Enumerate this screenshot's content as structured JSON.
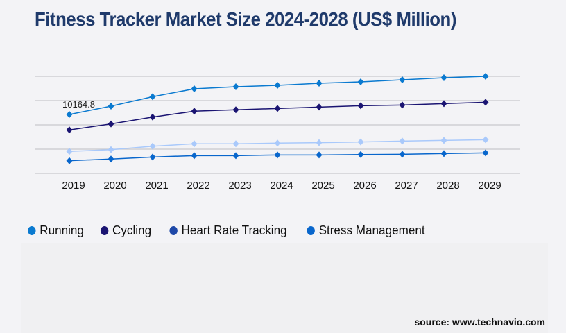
{
  "chart_data": {
    "type": "line",
    "title": "Fitness Tracker Market Size 2024-2028 (US$ Million)",
    "xlabel": "",
    "ylabel": "",
    "categories": [
      "2019",
      "2020",
      "2021",
      "2022",
      "2023",
      "2024",
      "2025",
      "2026",
      "2027",
      "2028",
      "2029"
    ],
    "ylim": [
      0,
      16743
    ],
    "grid": true,
    "y_tick_labels_shown": false,
    "legend_position": "bottom-left",
    "series": [
      {
        "name": "Running",
        "color": "#0a7ad0",
        "legend_color": "#0a7ad0",
        "values": [
          10164.8,
          11600,
          13230,
          14590,
          14950,
          15190,
          15550,
          15790,
          16150,
          16500,
          16740
        ]
      },
      {
        "name": "Cycling",
        "color": "#1a1472",
        "legend_color": "#1a1472",
        "values": [
          7500,
          8530,
          9720,
          10730,
          10970,
          11200,
          11440,
          11680,
          11800,
          12040,
          12280
        ]
      },
      {
        "name": "Heart Rate Tracking",
        "color": "#a9c9fb",
        "legend_color": "#1e48a8",
        "values": [
          3790,
          4100,
          4700,
          5110,
          5110,
          5230,
          5300,
          5420,
          5580,
          5700,
          5820
        ]
      },
      {
        "name": "Stress Management",
        "color": "#0866cc",
        "legend_color": "#0866cc",
        "values": [
          2190,
          2480,
          2830,
          3070,
          3070,
          3190,
          3190,
          3260,
          3310,
          3430,
          3550
        ]
      }
    ],
    "annotations": [
      {
        "series": "Running",
        "category": "2019",
        "text": "10164.8"
      }
    ]
  },
  "source": "source: www.technavio.com"
}
